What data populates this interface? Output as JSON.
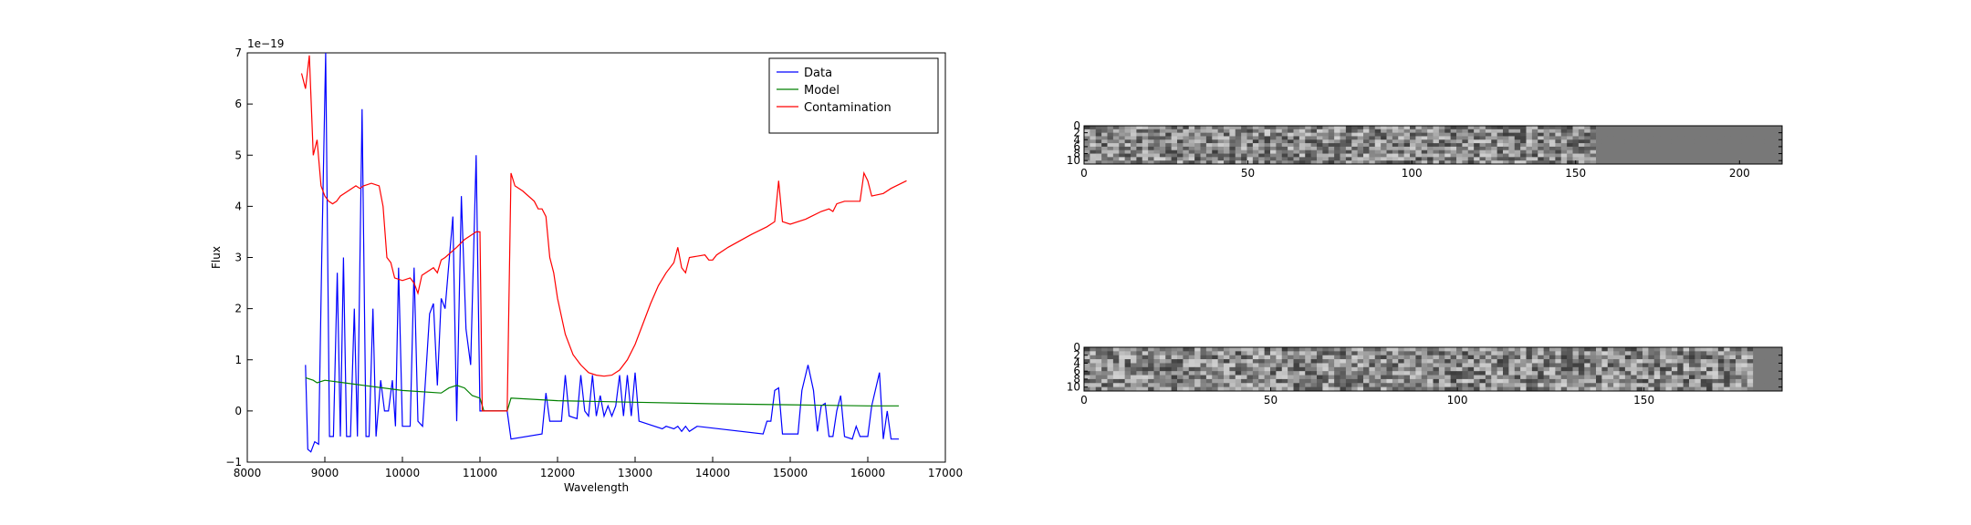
{
  "chart_data": [
    {
      "type": "line",
      "xlabel": "Wavelength",
      "ylabel": "Flux",
      "y_offset_label": "1e−19",
      "xlim": [
        8000,
        17000
      ],
      "xticks": [
        8000,
        9000,
        10000,
        11000,
        12000,
        13000,
        14000,
        15000,
        16000,
        17000
      ],
      "ylim": [
        -1,
        7
      ],
      "yticks": [
        {
          "value": -1,
          "label": "−1"
        },
        0,
        1,
        2,
        3,
        4,
        5,
        6,
        7
      ],
      "legend": "upper right",
      "series": [
        {
          "name": "Data",
          "color": "#0000ff",
          "x": [
            8750,
            8780,
            8820,
            8870,
            8920,
            8960,
            9010,
            9060,
            9110,
            9160,
            9200,
            9240,
            9280,
            9330,
            9380,
            9420,
            9480,
            9530,
            9570,
            9620,
            9660,
            9720,
            9770,
            9820,
            9870,
            9910,
            9950,
            10000,
            10100,
            10150,
            10200,
            10260,
            10350,
            10400,
            10450,
            10500,
            10550,
            10600,
            10650,
            10700,
            10760,
            10820,
            10880,
            10950,
            11000,
            11100,
            11350,
            11400,
            11800,
            11850,
            11900,
            12050,
            12100,
            12150,
            12250,
            12300,
            12350,
            12400,
            12450,
            12500,
            12550,
            12600,
            12650,
            12700,
            12750,
            12800,
            12850,
            12900,
            12950,
            13000,
            13050,
            13350,
            13400,
            13500,
            13550,
            13600,
            13650,
            13700,
            13800,
            14650,
            14700,
            14750,
            14800,
            14850,
            14900,
            15100,
            15150,
            15230,
            15300,
            15350,
            15400,
            15450,
            15500,
            15550,
            15600,
            15650,
            15700,
            15800,
            15850,
            15900,
            16000,
            16050,
            16150,
            16200,
            16250,
            16300,
            16400
          ],
          "values": [
            0.9,
            -0.75,
            -0.8,
            -0.6,
            -0.65,
            3.0,
            7.0,
            -0.5,
            -0.5,
            2.7,
            -0.5,
            3.0,
            -0.5,
            -0.5,
            2.0,
            -0.5,
            5.9,
            -0.5,
            -0.5,
            2.0,
            -0.5,
            0.6,
            0,
            0,
            0.6,
            -0.3,
            2.8,
            -0.3,
            -0.3,
            2.8,
            -0.2,
            -0.3,
            1.9,
            2.1,
            0.5,
            2.2,
            2.0,
            2.9,
            3.8,
            -0.2,
            4.2,
            1.6,
            0.9,
            5.0,
            0,
            0,
            0,
            -0.55,
            -0.45,
            0.35,
            -0.2,
            -0.2,
            0.7,
            -0.1,
            -0.15,
            0.7,
            0,
            -0.1,
            0.7,
            -0.1,
            0.3,
            -0.1,
            0.1,
            -0.1,
            0.1,
            0.7,
            -0.1,
            0.7,
            -0.1,
            0.75,
            -0.2,
            -0.35,
            -0.3,
            -0.35,
            -0.3,
            -0.4,
            -0.3,
            -0.4,
            -0.3,
            -0.45,
            -0.2,
            -0.2,
            0.4,
            0.45,
            -0.45,
            -0.45,
            0.4,
            0.9,
            0.4,
            -0.4,
            0.1,
            0.15,
            -0.5,
            -0.5,
            0,
            0.3,
            -0.5,
            -0.55,
            -0.3,
            -0.5,
            -0.5,
            0.1,
            0.75,
            -0.55,
            0,
            -0.55,
            -0.55
          ]
        },
        {
          "name": "Model",
          "color": "#008000",
          "x": [
            8750,
            8850,
            8900,
            9000,
            9500,
            10000,
            10500,
            10600,
            10700,
            10800,
            10900,
            11000,
            11050,
            11350,
            11400,
            12000,
            13000,
            14000,
            15000,
            16000,
            16400
          ],
          "values": [
            0.65,
            0.6,
            0.55,
            0.6,
            0.5,
            0.4,
            0.35,
            0.45,
            0.5,
            0.45,
            0.3,
            0.25,
            0,
            0,
            0.25,
            0.2,
            0.17,
            0.14,
            0.12,
            0.1,
            0.1
          ]
        },
        {
          "name": "Contamination",
          "color": "#ff0000",
          "x": [
            8700,
            8750,
            8800,
            8850,
            8900,
            8950,
            9000,
            9050,
            9100,
            9150,
            9200,
            9300,
            9400,
            9450,
            9500,
            9600,
            9700,
            9750,
            9800,
            9850,
            9900,
            10000,
            10100,
            10150,
            10200,
            10250,
            10350,
            10400,
            10450,
            10500,
            10550,
            10700,
            10800,
            10900,
            10950,
            11000,
            11030,
            11350,
            11400,
            11450,
            11550,
            11700,
            11750,
            11800,
            11850,
            11900,
            11950,
            12000,
            12100,
            12200,
            12300,
            12400,
            12500,
            12600,
            12700,
            12800,
            12900,
            13000,
            13100,
            13200,
            13300,
            13400,
            13500,
            13550,
            13600,
            13650,
            13700,
            13900,
            13950,
            14000,
            14050,
            14200,
            14500,
            14700,
            14800,
            14850,
            14900,
            15000,
            15200,
            15400,
            15500,
            15550,
            15600,
            15700,
            15900,
            15950,
            16000,
            16050,
            16200,
            16300,
            16500
          ],
          "values": [
            6.6,
            6.3,
            6.95,
            5.0,
            5.3,
            4.4,
            4.2,
            4.1,
            4.05,
            4.1,
            4.2,
            4.3,
            4.4,
            4.35,
            4.4,
            4.45,
            4.4,
            4.0,
            3.0,
            2.9,
            2.6,
            2.55,
            2.6,
            2.5,
            2.3,
            2.65,
            2.75,
            2.8,
            2.7,
            2.95,
            3.0,
            3.2,
            3.35,
            3.45,
            3.5,
            3.5,
            0,
            0,
            4.65,
            4.4,
            4.3,
            4.1,
            3.95,
            3.95,
            3.8,
            3.0,
            2.7,
            2.2,
            1.5,
            1.1,
            0.9,
            0.75,
            0.7,
            0.68,
            0.7,
            0.8,
            1.0,
            1.3,
            1.7,
            2.1,
            2.45,
            2.7,
            2.9,
            3.2,
            2.8,
            2.7,
            3.0,
            3.05,
            2.95,
            2.95,
            3.05,
            3.2,
            3.45,
            3.6,
            3.7,
            4.5,
            3.7,
            3.65,
            3.75,
            3.9,
            3.95,
            3.9,
            4.05,
            4.1,
            4.1,
            4.65,
            4.5,
            4.2,
            4.25,
            4.35,
            4.5
          ]
        }
      ]
    },
    {
      "type": "image",
      "xlim": [
        0,
        213
      ],
      "xticks": [
        0,
        50,
        100,
        150,
        200
      ],
      "ylim": [
        11,
        0
      ],
      "yticks": [
        0,
        2,
        4,
        6,
        8,
        10
      ]
    },
    {
      "type": "image",
      "xlim": [
        0,
        187
      ],
      "xticks": [
        0,
        50,
        100,
        150
      ],
      "ylim": [
        11,
        0
      ],
      "yticks": [
        0,
        2,
        4,
        6,
        8,
        10
      ]
    }
  ]
}
